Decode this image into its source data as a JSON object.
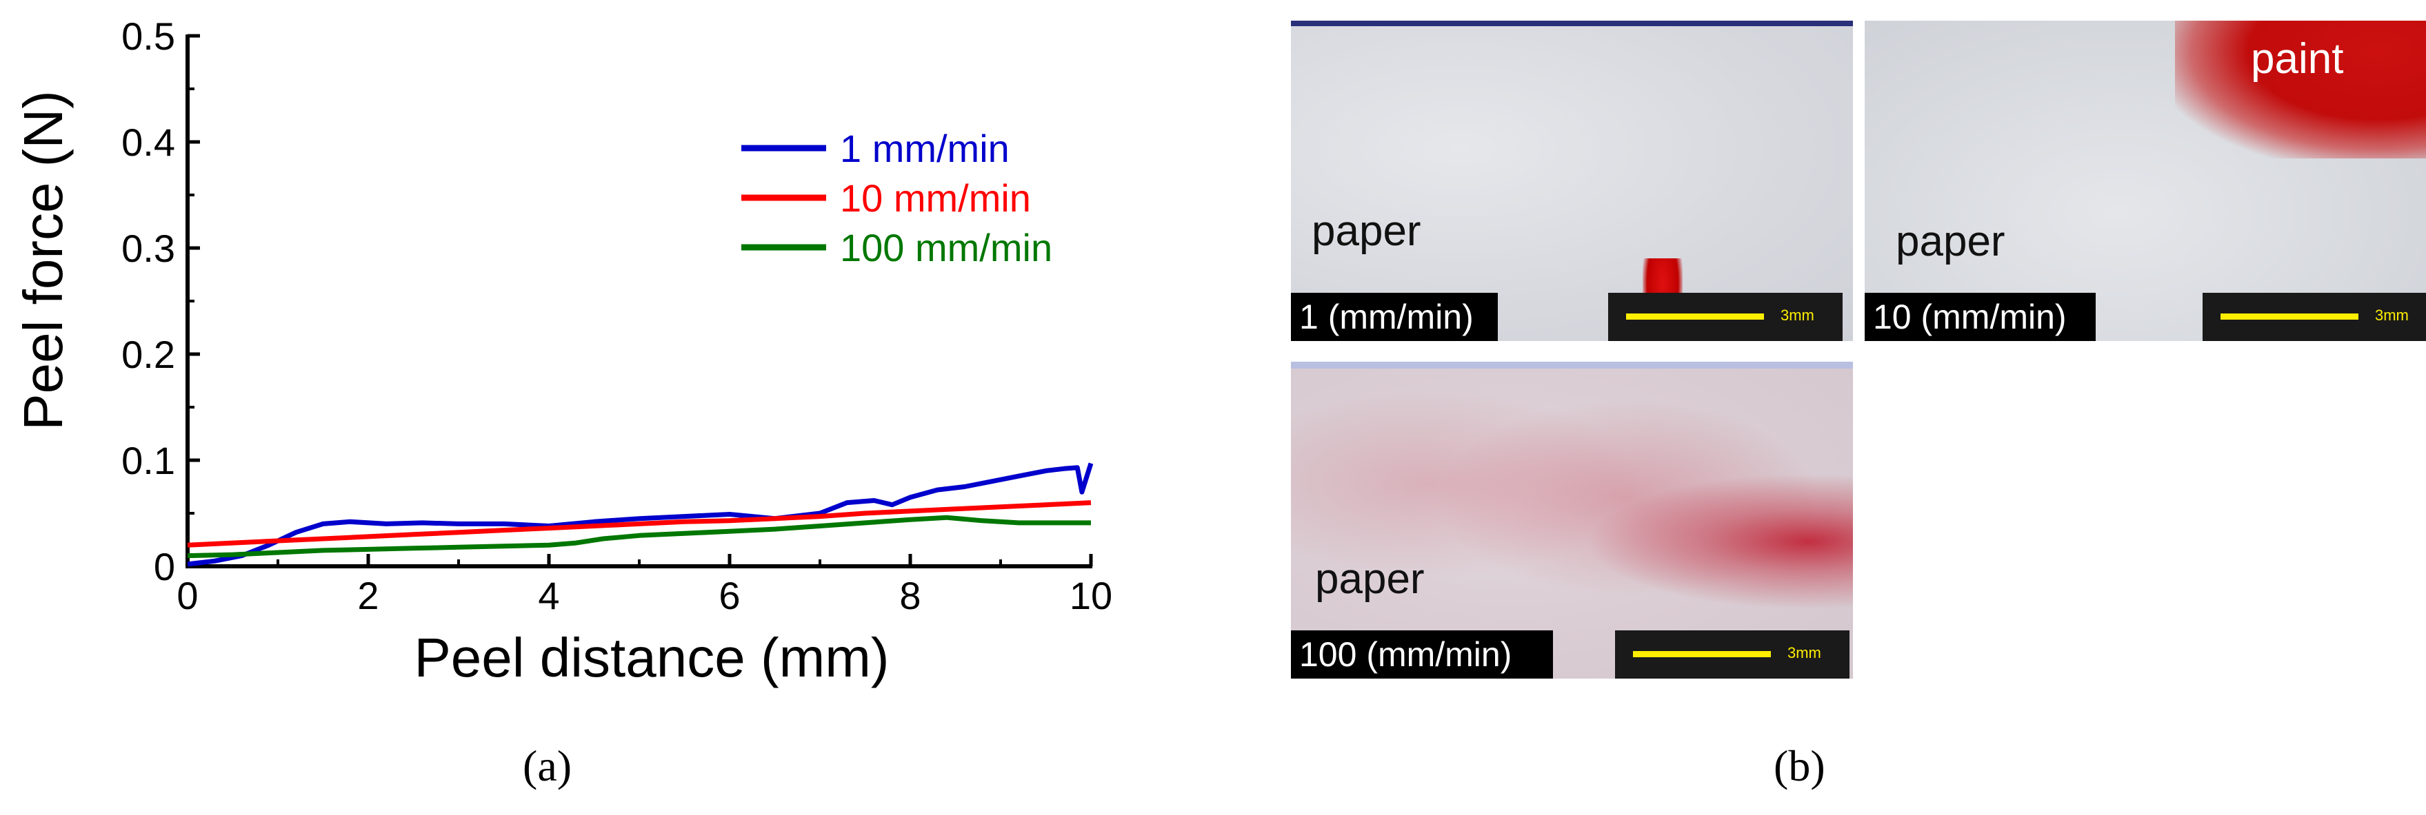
{
  "chart_data": {
    "type": "line",
    "xlabel": "Peel distance (mm)",
    "ylabel": "Peel force (N)",
    "xlim": [
      0,
      10
    ],
    "ylim": [
      0,
      0.5
    ],
    "xticks": [
      "0",
      "2",
      "4",
      "6",
      "8",
      "10"
    ],
    "yticks": [
      "0",
      "0.1",
      "0.2",
      "0.3",
      "0.4",
      "0.5"
    ],
    "legend_position": "top-right",
    "grid": false,
    "series": [
      {
        "name": "1 mm/min",
        "color": "#0000cc",
        "x": [
          0,
          0.3,
          0.6,
          0.9,
          1.2,
          1.5,
          1.8,
          2.2,
          2.6,
          3.0,
          3.5,
          4.0,
          4.5,
          5.0,
          5.5,
          6.0,
          6.5,
          7.0,
          7.3,
          7.6,
          7.8,
          8.0,
          8.3,
          8.6,
          8.9,
          9.2,
          9.5,
          9.7,
          9.85,
          9.9,
          10.0
        ],
        "y": [
          0.002,
          0.005,
          0.01,
          0.02,
          0.032,
          0.04,
          0.042,
          0.04,
          0.041,
          0.04,
          0.04,
          0.038,
          0.042,
          0.045,
          0.047,
          0.049,
          0.045,
          0.05,
          0.06,
          0.062,
          0.058,
          0.065,
          0.072,
          0.075,
          0.08,
          0.085,
          0.09,
          0.092,
          0.093,
          0.07,
          0.097
        ]
      },
      {
        "name": "10 mm/min",
        "color": "#ff0000",
        "x": [
          0,
          0.5,
          1.0,
          1.5,
          2.0,
          2.5,
          3.0,
          3.5,
          4.0,
          4.5,
          5.0,
          5.5,
          6.0,
          6.5,
          7.0,
          7.5,
          8.0,
          8.5,
          9.0,
          9.5,
          10.0
        ],
        "y": [
          0.02,
          0.022,
          0.024,
          0.026,
          0.028,
          0.03,
          0.032,
          0.034,
          0.036,
          0.038,
          0.04,
          0.042,
          0.043,
          0.045,
          0.047,
          0.05,
          0.052,
          0.054,
          0.056,
          0.058,
          0.06
        ]
      },
      {
        "name": "100 mm/min",
        "color": "#007700",
        "x": [
          0,
          0.5,
          1.0,
          1.5,
          2.0,
          2.5,
          3.0,
          3.5,
          4.0,
          4.3,
          4.6,
          5.0,
          5.5,
          6.0,
          6.5,
          7.0,
          7.5,
          8.0,
          8.4,
          8.8,
          9.2,
          9.6,
          10.0
        ],
        "y": [
          0.01,
          0.011,
          0.013,
          0.015,
          0.016,
          0.017,
          0.018,
          0.019,
          0.02,
          0.022,
          0.026,
          0.029,
          0.031,
          0.033,
          0.035,
          0.038,
          0.041,
          0.044,
          0.046,
          0.043,
          0.041,
          0.041,
          0.041
        ]
      }
    ]
  },
  "captions": {
    "a": "(a)",
    "b": "(b)"
  },
  "micrographs": [
    {
      "label": "1 (mm/min)",
      "scale": "3mm",
      "region_texts": [
        "paper"
      ]
    },
    {
      "label": "10 (mm/min)",
      "scale": "3mm",
      "region_texts": [
        "paper",
        "paint"
      ]
    },
    {
      "label": "100 (mm/min)",
      "scale": "3mm",
      "region_texts": [
        "paper"
      ]
    }
  ]
}
